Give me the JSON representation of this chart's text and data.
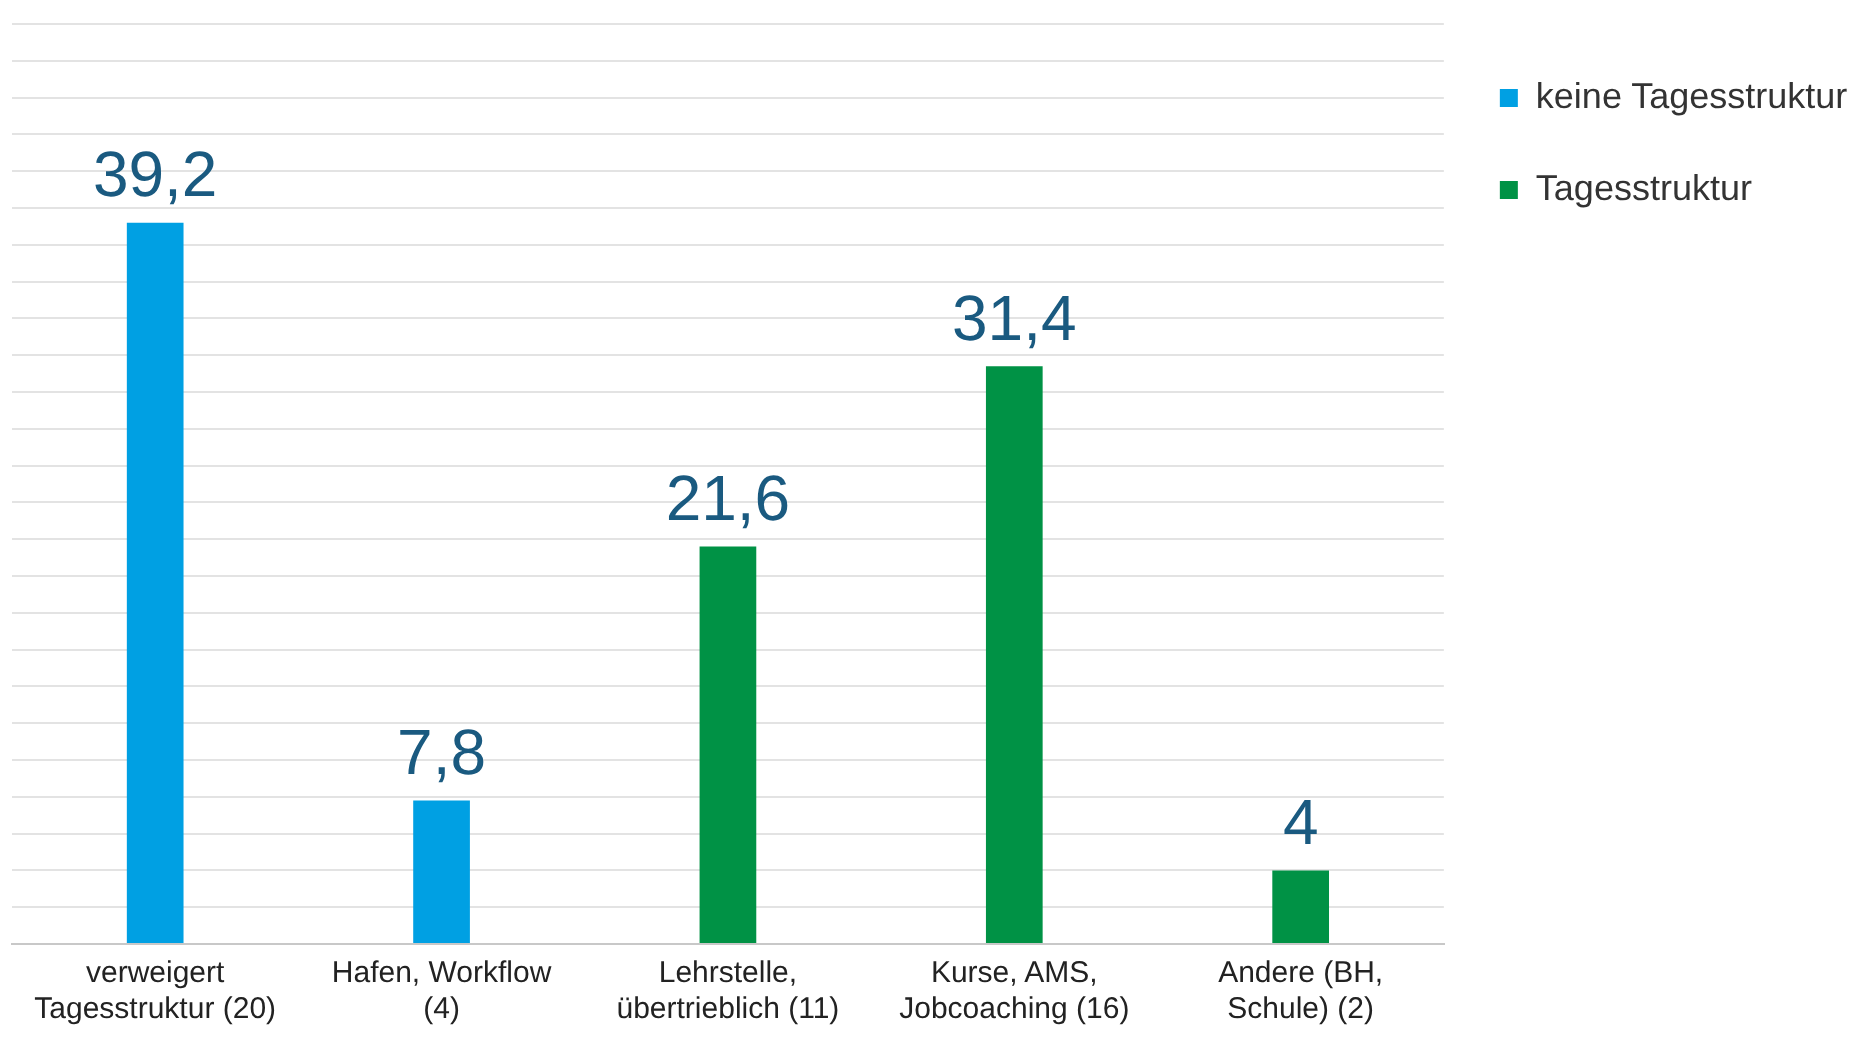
{
  "chart_data": {
    "type": "bar",
    "categories": [
      "verweigert Tagesstruktur (20)",
      "Hafen, Workflow (4)",
      "Lehrstelle, übertrieblich (11)",
      "Kurse, AMS, Jobcoaching (16)",
      "Andere (BH, Schule) (2)"
    ],
    "series": [
      {
        "name": "keine Tagesstruktur",
        "color": "#00a0e3",
        "values": [
          39.2,
          7.8,
          null,
          null,
          null
        ],
        "value_labels": [
          "39,2",
          "7,8",
          null,
          null,
          null
        ]
      },
      {
        "name": "Tagesstruktur",
        "color": "#009245",
        "values": [
          null,
          null,
          21.6,
          31.4,
          4
        ],
        "value_labels": [
          null,
          null,
          "21,6",
          "31,4",
          "4"
        ]
      }
    ],
    "ylim": [
      0,
      50
    ],
    "yticks": [
      0,
      2,
      4,
      6,
      8,
      10,
      12,
      14,
      16,
      18,
      20,
      22,
      24,
      26,
      28,
      30,
      32,
      34,
      36,
      38,
      40,
      42,
      44,
      46,
      48,
      50
    ],
    "grid": "y",
    "tick_labels": "x",
    "legend": "top right"
  }
}
